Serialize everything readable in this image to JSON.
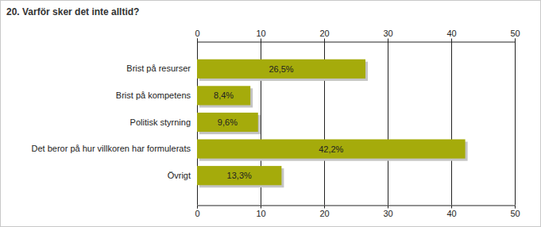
{
  "chart_data": {
    "type": "bar",
    "orientation": "horizontal",
    "title": "20. Varför sker det inte alltid?",
    "categories": [
      "Brist på resurser",
      "Brist på kompetens",
      "Politisk styrning",
      "Det beror på hur villkoren har formulerats",
      "Övrigt"
    ],
    "values": [
      26.5,
      8.4,
      9.6,
      42.2,
      13.3
    ],
    "value_labels": [
      "26,5%",
      "8,4%",
      "9,6%",
      "42,2%",
      "13,3%"
    ],
    "color": "#a5ab0b",
    "xlim": [
      0,
      50
    ],
    "xticks": [
      0,
      10,
      20,
      30,
      40,
      50
    ],
    "grid": true,
    "data_labels": true
  }
}
